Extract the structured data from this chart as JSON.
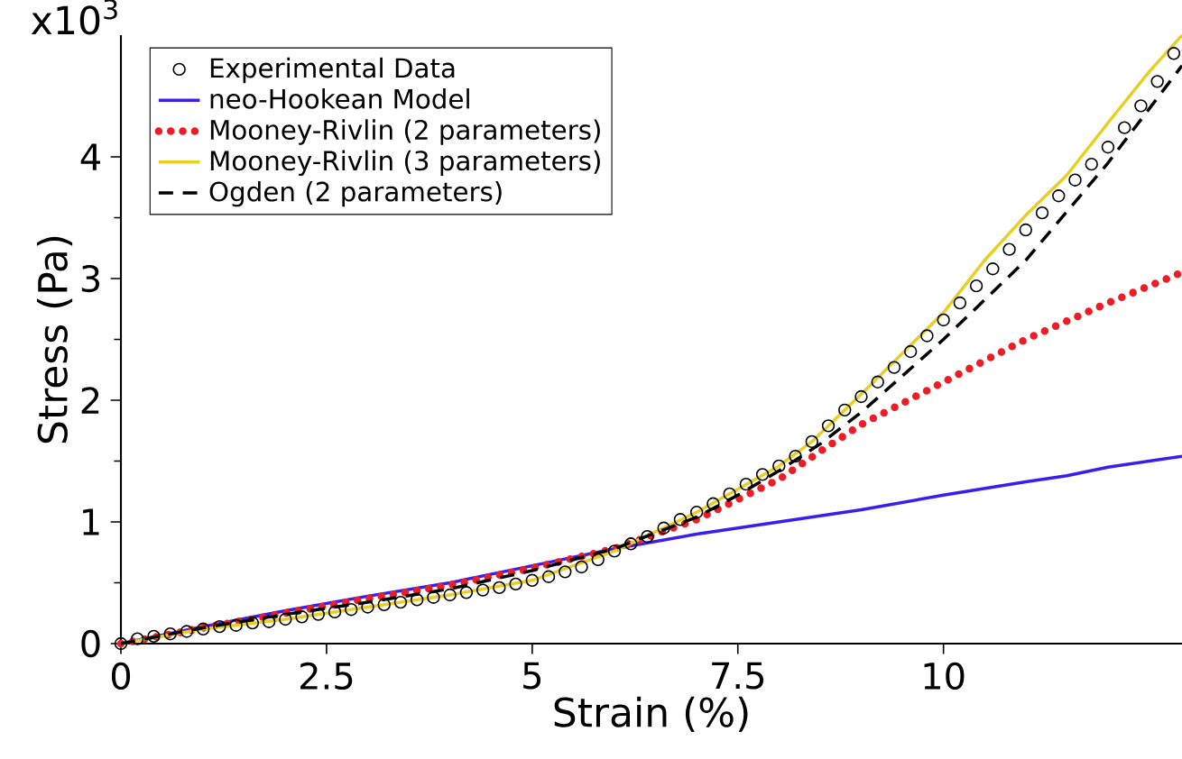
{
  "chart_data": {
    "type": "line",
    "xlabel": "Strain (%)",
    "ylabel": "Stress (Pa)",
    "annotations": [
      "x10$^{3}$"
    ],
    "xlim": [
      0,
      12.9
    ],
    "ylim": [
      0,
      5
    ],
    "xticks": [
      0,
      2.5,
      5,
      7.5,
      10
    ],
    "yticks": [
      0,
      1,
      2,
      3,
      4
    ],
    "grid": false,
    "legend": "top left",
    "series": [
      {
        "name": "Experimental Data",
        "type": "scatter",
        "marker": "circle",
        "color": "#000000",
        "x": [
          0,
          0.2,
          0.4,
          0.6,
          0.8,
          1,
          1.2,
          1.4,
          1.6,
          1.8,
          2,
          2.2,
          2.4,
          2.6,
          2.8,
          3,
          3.2,
          3.4,
          3.6,
          3.8,
          4,
          4.2,
          4.4,
          4.6,
          4.8,
          5,
          5.2,
          5.4,
          5.6,
          5.8,
          6,
          6.2,
          6.4,
          6.6,
          6.8,
          7,
          7.2,
          7.4,
          7.6,
          7.8,
          8,
          8.2,
          8.4,
          8.6,
          8.8,
          9,
          9.2,
          9.4,
          9.6,
          9.8,
          10,
          10.2,
          10.4,
          10.6,
          10.8,
          11,
          11.2,
          11.4,
          11.6,
          11.8,
          12,
          12.2,
          12.4,
          12.6,
          12.8
        ],
        "values": [
          0,
          0.04,
          0.06,
          0.08,
          0.1,
          0.12,
          0.14,
          0.15,
          0.17,
          0.18,
          0.2,
          0.22,
          0.24,
          0.26,
          0.28,
          0.3,
          0.32,
          0.34,
          0.36,
          0.38,
          0.4,
          0.42,
          0.44,
          0.46,
          0.49,
          0.52,
          0.55,
          0.59,
          0.63,
          0.69,
          0.76,
          0.82,
          0.88,
          0.95,
          1.02,
          1.08,
          1.15,
          1.23,
          1.31,
          1.39,
          1.46,
          1.54,
          1.66,
          1.79,
          1.92,
          2.03,
          2.15,
          2.27,
          2.4,
          2.53,
          2.66,
          2.8,
          2.94,
          3.08,
          3.24,
          3.4,
          3.54,
          3.68,
          3.81,
          3.94,
          4.08,
          4.24,
          4.42,
          4.62,
          4.85
        ]
      },
      {
        "name": "neo-Hookean Model",
        "line_style": "solid",
        "color": "#3a1ef0",
        "x": [
          0,
          1,
          2,
          3,
          4,
          5,
          6,
          7,
          8,
          9,
          10,
          11,
          11.5,
          12,
          12.5,
          12.9
        ],
        "values": [
          0,
          0.14,
          0.27,
          0.39,
          0.5,
          0.64,
          0.78,
          0.9,
          1.0,
          1.1,
          1.22,
          1.33,
          1.38,
          1.45,
          1.5,
          1.54
        ]
      },
      {
        "name": "Mooney-Rivlin (2 parameters)",
        "line_style": "dotted",
        "color": "#ee1c25",
        "x": [
          0,
          1,
          2,
          3,
          4,
          5,
          6,
          7,
          8,
          8.5,
          9,
          10,
          11,
          12,
          12.9
        ],
        "values": [
          0,
          0.13,
          0.25,
          0.37,
          0.48,
          0.62,
          0.78,
          1.02,
          1.35,
          1.58,
          1.8,
          2.15,
          2.5,
          2.8,
          3.05
        ]
      },
      {
        "name": "Mooney-Rivlin (3 parameters)",
        "line_style": "solid",
        "color": "#e8d020",
        "x": [
          0,
          1,
          2,
          3,
          4,
          5,
          6,
          7,
          8,
          8.4,
          9,
          10,
          10.5,
          11,
          11.5,
          12,
          12.5,
          12.9
        ],
        "values": [
          0,
          0.12,
          0.2,
          0.3,
          0.4,
          0.52,
          0.76,
          1.08,
          1.46,
          1.66,
          2.05,
          2.72,
          3.15,
          3.52,
          3.85,
          4.28,
          4.7,
          5.0
        ]
      },
      {
        "name": "Ogden (2 parameters)",
        "line_style": "dashed",
        "color": "#000000",
        "x": [
          0,
          1,
          2,
          3,
          4,
          5,
          6,
          7,
          7.5,
          8,
          8.5,
          9,
          10,
          11,
          12,
          12.9
        ],
        "values": [
          0,
          0.13,
          0.24,
          0.34,
          0.45,
          0.6,
          0.78,
          1.04,
          1.22,
          1.42,
          1.64,
          1.9,
          2.5,
          3.15,
          3.95,
          4.75
        ]
      }
    ]
  }
}
